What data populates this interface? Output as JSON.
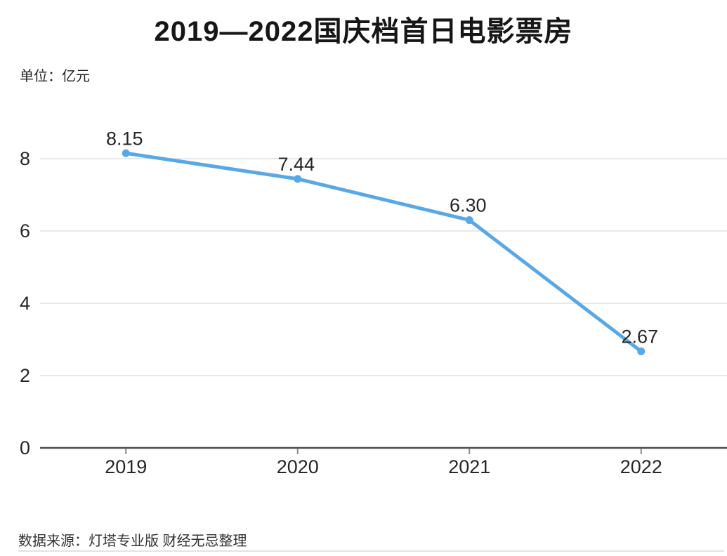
{
  "chart_data": {
    "type": "line",
    "title": "2019—2022国庆档首日电影票房",
    "unit_label": "单位：亿元",
    "categories": [
      "2019",
      "2020",
      "2021",
      "2022"
    ],
    "values": [
      8.15,
      7.44,
      6.3,
      2.67
    ],
    "value_labels": [
      "8.15",
      "7.44",
      "6.30",
      "2.67"
    ],
    "xlabel": "",
    "ylabel": "",
    "ylim": [
      0,
      8
    ],
    "yticks": [
      0,
      2,
      4,
      6,
      8
    ],
    "grid": true,
    "legend": false,
    "colors": {
      "line": "#58a8e8",
      "marker": "#58a8e8",
      "label_text": "#262626",
      "tick_text": "#262626",
      "gridline": "#e0e0e0",
      "axis_line": "#4d4d4d",
      "tick_mark": "#8a8a8a"
    }
  },
  "footer": {
    "source": "数据来源：灯塔专业版 财经无忌整理"
  }
}
